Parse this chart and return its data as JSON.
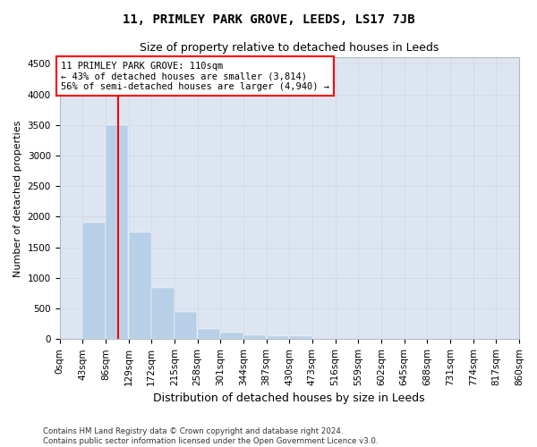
{
  "title": "11, PRIMLEY PARK GROVE, LEEDS, LS17 7JB",
  "subtitle": "Size of property relative to detached houses in Leeds",
  "xlabel": "Distribution of detached houses by size in Leeds",
  "ylabel": "Number of detached properties",
  "footer_line1": "Contains HM Land Registry data © Crown copyright and database right 2024.",
  "footer_line2": "Contains public sector information licensed under the Open Government Licence v3.0.",
  "bin_edges": [
    0,
    43,
    86,
    129,
    172,
    215,
    258,
    301,
    344,
    387,
    430,
    473,
    516,
    559,
    602,
    645,
    688,
    731,
    774,
    817,
    860
  ],
  "bin_labels": [
    "0sqm",
    "43sqm",
    "86sqm",
    "129sqm",
    "172sqm",
    "215sqm",
    "258sqm",
    "301sqm",
    "344sqm",
    "387sqm",
    "430sqm",
    "473sqm",
    "516sqm",
    "559sqm",
    "602sqm",
    "645sqm",
    "688sqm",
    "731sqm",
    "774sqm",
    "817sqm",
    "860sqm"
  ],
  "bar_heights": [
    25,
    1900,
    3500,
    1750,
    840,
    450,
    160,
    100,
    70,
    55,
    55,
    10,
    5,
    2,
    1,
    1,
    0,
    0,
    0,
    0
  ],
  "bar_color": "#b8cfe8",
  "bar_edge_color": "#b8cfe8",
  "vline_x": 110,
  "vline_color": "red",
  "ylim_max": 4600,
  "yticks": [
    0,
    500,
    1000,
    1500,
    2000,
    2500,
    3000,
    3500,
    4000,
    4500
  ],
  "annotation_line1": "11 PRIMLEY PARK GROVE: 110sqm",
  "annotation_line2": "← 43% of detached houses are smaller (3,814)",
  "annotation_line3": "56% of semi-detached houses are larger (4,940) →",
  "grid_color": "#d0d8e8",
  "bg_color": "#dde6f0",
  "title_fontsize": 10,
  "subtitle_fontsize": 9,
  "ylabel_fontsize": 8,
  "xlabel_fontsize": 9,
  "tick_fontsize": 7.5,
  "ann_fontsize": 7.5
}
